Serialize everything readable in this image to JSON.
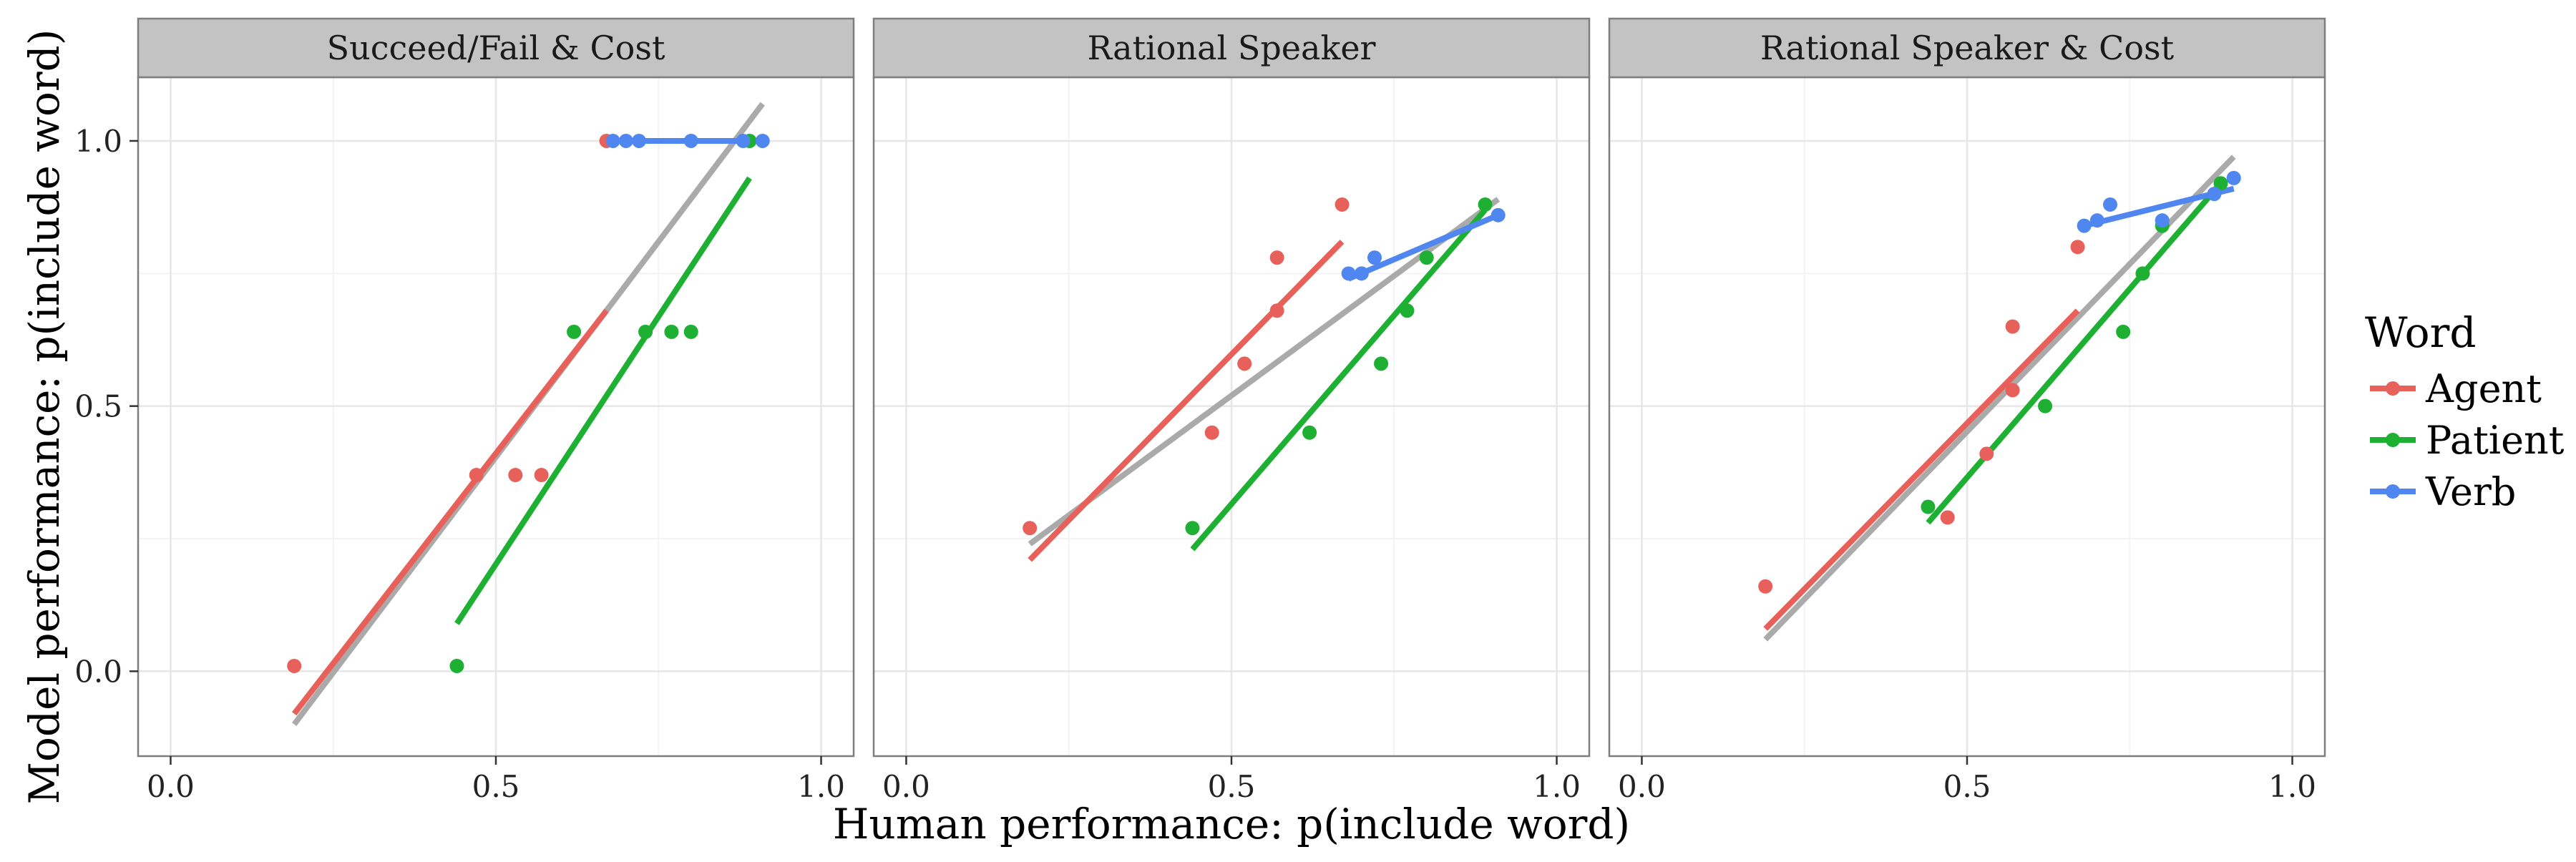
{
  "chart_data": {
    "type": "scatter",
    "xlabel": "Human performance: p(include word)",
    "ylabel": "Model performance: p(include word)",
    "xlim": [
      -0.05,
      1.05
    ],
    "ylim": [
      -0.16,
      1.12
    ],
    "x_ticks": [
      0.0,
      0.5,
      1.0
    ],
    "x_tick_labels": [
      "0.0",
      "0.5",
      "1.0"
    ],
    "y_ticks": [
      0.0,
      0.5,
      1.0
    ],
    "y_tick_labels": [
      "0.0",
      "0.5",
      "1.0"
    ],
    "grid": true,
    "legend": {
      "title": "Word",
      "position": "right",
      "entries": [
        {
          "name": "Agent",
          "color": "#E8605A"
        },
        {
          "name": "Patient",
          "color": "#1DB033"
        },
        {
          "name": "Verb",
          "color": "#4F86F0"
        }
      ]
    },
    "overall_fit_color": "#AAAAAA",
    "panels": [
      {
        "title": "Succeed/Fail & Cost",
        "series": [
          {
            "name": "Agent",
            "points": [
              [
                0.19,
                0.01
              ],
              [
                0.47,
                0.37
              ],
              [
                0.53,
                0.37
              ],
              [
                0.57,
                0.37
              ],
              [
                0.67,
                1.0
              ]
            ],
            "fit": [
              [
                0.19,
                -0.08
              ],
              [
                0.67,
                0.68
              ]
            ]
          },
          {
            "name": "Patient",
            "points": [
              [
                0.44,
                0.01
              ],
              [
                0.62,
                0.64
              ],
              [
                0.73,
                0.64
              ],
              [
                0.77,
                0.64
              ],
              [
                0.8,
                0.64
              ],
              [
                0.89,
                1.0
              ]
            ],
            "fit": [
              [
                0.44,
                0.09
              ],
              [
                0.89,
                0.93
              ]
            ]
          },
          {
            "name": "Verb",
            "points": [
              [
                0.68,
                1.0
              ],
              [
                0.7,
                1.0
              ],
              [
                0.72,
                1.0
              ],
              [
                0.8,
                1.0
              ],
              [
                0.88,
                1.0
              ],
              [
                0.91,
                1.0
              ]
            ],
            "fit": [
              [
                0.68,
                1.0
              ],
              [
                0.91,
                1.0
              ]
            ]
          }
        ],
        "overall_fit": [
          [
            0.19,
            -0.1
          ],
          [
            0.91,
            1.07
          ]
        ]
      },
      {
        "title": "Rational Speaker",
        "series": [
          {
            "name": "Agent",
            "points": [
              [
                0.19,
                0.27
              ],
              [
                0.47,
                0.45
              ],
              [
                0.52,
                0.58
              ],
              [
                0.57,
                0.68
              ],
              [
                0.57,
                0.78
              ],
              [
                0.67,
                0.88
              ]
            ],
            "fit": [
              [
                0.19,
                0.21
              ],
              [
                0.67,
                0.81
              ]
            ]
          },
          {
            "name": "Patient",
            "points": [
              [
                0.44,
                0.27
              ],
              [
                0.62,
                0.45
              ],
              [
                0.73,
                0.58
              ],
              [
                0.77,
                0.68
              ],
              [
                0.8,
                0.78
              ],
              [
                0.89,
                0.88
              ]
            ],
            "fit": [
              [
                0.44,
                0.23
              ],
              [
                0.89,
                0.87
              ]
            ]
          },
          {
            "name": "Verb",
            "points": [
              [
                0.68,
                0.75
              ],
              [
                0.7,
                0.75
              ],
              [
                0.72,
                0.78
              ],
              [
                0.91,
                0.86
              ]
            ],
            "fit": [
              [
                0.68,
                0.74
              ],
              [
                0.91,
                0.86
              ]
            ]
          }
        ],
        "overall_fit": [
          [
            0.19,
            0.24
          ],
          [
            0.91,
            0.89
          ]
        ]
      },
      {
        "title": "Rational Speaker & Cost",
        "series": [
          {
            "name": "Agent",
            "points": [
              [
                0.19,
                0.16
              ],
              [
                0.47,
                0.29
              ],
              [
                0.53,
                0.41
              ],
              [
                0.57,
                0.53
              ],
              [
                0.57,
                0.65
              ],
              [
                0.67,
                0.8
              ]
            ],
            "fit": [
              [
                0.19,
                0.08
              ],
              [
                0.67,
                0.68
              ]
            ]
          },
          {
            "name": "Patient",
            "points": [
              [
                0.44,
                0.31
              ],
              [
                0.62,
                0.5
              ],
              [
                0.74,
                0.64
              ],
              [
                0.77,
                0.75
              ],
              [
                0.8,
                0.84
              ],
              [
                0.89,
                0.92
              ]
            ],
            "fit": [
              [
                0.44,
                0.28
              ],
              [
                0.89,
                0.92
              ]
            ]
          },
          {
            "name": "Verb",
            "points": [
              [
                0.68,
                0.84
              ],
              [
                0.7,
                0.85
              ],
              [
                0.72,
                0.88
              ],
              [
                0.8,
                0.85
              ],
              [
                0.88,
                0.9
              ],
              [
                0.91,
                0.93
              ]
            ],
            "fit": [
              [
                0.68,
                0.84
              ],
              [
                0.91,
                0.91
              ]
            ]
          }
        ],
        "overall_fit": [
          [
            0.19,
            0.06
          ],
          [
            0.91,
            0.97
          ]
        ]
      }
    ]
  }
}
